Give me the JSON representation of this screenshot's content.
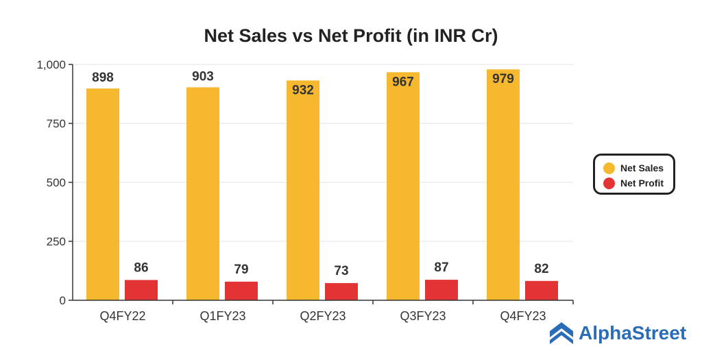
{
  "chart_data": {
    "type": "bar",
    "title": "Net Sales vs Net Profit (in INR Cr)",
    "categories": [
      "Q4FY22",
      "Q1FY23",
      "Q2FY23",
      "Q3FY23",
      "Q4FY23"
    ],
    "series": [
      {
        "name": "Net Sales",
        "values": [
          898,
          903,
          932,
          967,
          979
        ],
        "color": "#f5b82e"
      },
      {
        "name": "Net Profit",
        "values": [
          86,
          79,
          73,
          87,
          82
        ],
        "color": "#e23434"
      }
    ],
    "ylim": [
      0,
      1000
    ],
    "yticks": [
      0,
      250,
      500,
      750,
      1000
    ],
    "ytick_labels": [
      "0",
      "250",
      "500",
      "750",
      "1,000"
    ],
    "grid": true,
    "legend_position": "right"
  },
  "brand": {
    "name": "AlphaStreet",
    "color": "#2a6cb8",
    "icon": "alphastreet-logo-icon"
  }
}
